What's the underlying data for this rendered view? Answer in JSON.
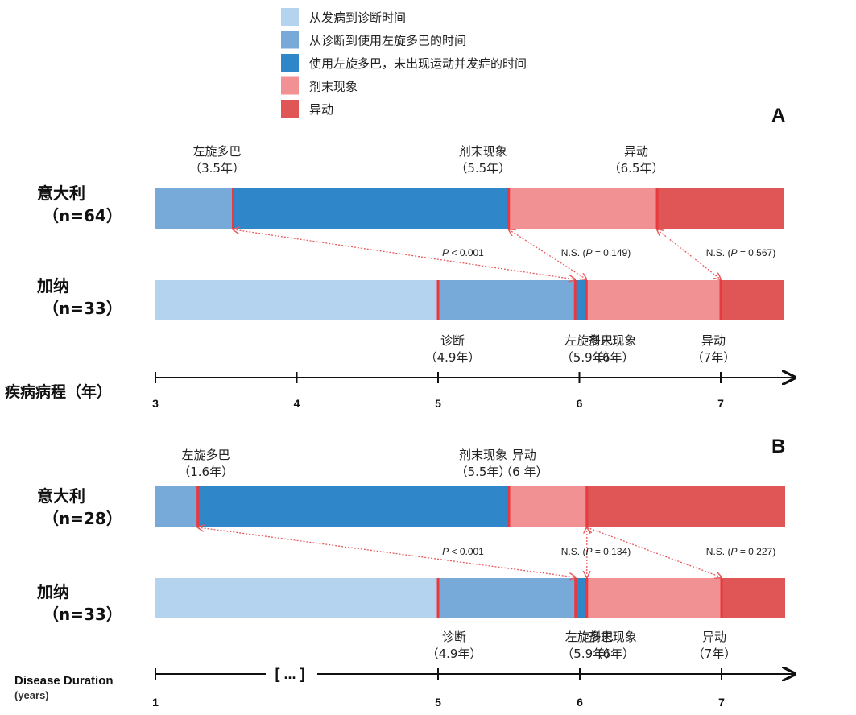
{
  "colors": {
    "onset_to_diagnosis": "#b3d3ef",
    "diagnosis_to_levodopa": "#78aad9",
    "levodopa_no_complications": "#2f86c9",
    "wearing_off": "#f29193",
    "dyskinesia": "#e05555",
    "event_line": "#e8393f",
    "arrow": "#e8595c",
    "axis": "#111111"
  },
  "legend": [
    {
      "label": "从发病到诊断时间",
      "color": "#b3d3ef"
    },
    {
      "label": "从诊断到使用左旋多巴的时间",
      "color": "#78aad9"
    },
    {
      "label": "使用左旋多巴，未出现运动并发症的时间",
      "color": "#2f86c9"
    },
    {
      "label": "剂末现象",
      "color": "#f29193"
    },
    {
      "label": "异动",
      "color": "#e05555"
    }
  ],
  "chart_data": [
    {
      "type": "bar",
      "panel": "A",
      "orientation": "horizontal-timeline",
      "xlabel": "疾病病程（年）",
      "xlim": [
        3,
        7.45
      ],
      "xticks": [
        3,
        4,
        5,
        6,
        7
      ],
      "axis_break": "",
      "groups": [
        {
          "name": "意大利",
          "n": "（n=64）",
          "segments": [
            {
              "series": "从诊断到使用左旋多巴的时间",
              "start": 3,
              "end": 3.55
            },
            {
              "series": "使用左旋多巴，未出现运动并发症的时间",
              "start": 3.55,
              "end": 5.5
            },
            {
              "series": "剂末现象",
              "start": 5.5,
              "end": 6.55
            },
            {
              "series": "异动",
              "start": 6.55,
              "end": 7.45
            }
          ],
          "events": [
            {
              "name": "左旋多巴",
              "value_label": "（3.5年）",
              "x": 3.55
            },
            {
              "name": "剂末现象",
              "value_label": "（5.5年）",
              "x": 5.5
            },
            {
              "name": "异动",
              "value_label": "（6.5年）",
              "x": 6.55
            }
          ]
        },
        {
          "name": "加纳",
          "n": "（n=33）",
          "segments": [
            {
              "series": "从发病到诊断时间",
              "start": 3,
              "end": 5.0
            },
            {
              "series": "从诊断到使用左旋多巴的时间",
              "start": 5.0,
              "end": 5.97
            },
            {
              "series": "使用左旋多巴，未出现运动并发症的时间",
              "start": 5.97,
              "end": 6.05
            },
            {
              "series": "剂末现象",
              "start": 6.05,
              "end": 7.0
            },
            {
              "series": "异动",
              "start": 7.0,
              "end": 7.45
            }
          ],
          "events": [
            {
              "name": "诊断",
              "value_label": "（4.9年）",
              "x": 5.0
            },
            {
              "name": "左旋多巴",
              "value_label": "（5.9年）",
              "x": 5.97
            },
            {
              "name": "剂末现象",
              "value_label": "（6年）",
              "x": 6.05
            },
            {
              "name": "异动",
              "value_label": "（7年）",
              "x": 7.0
            }
          ]
        }
      ],
      "comparisons": [
        {
          "label_prefix": "",
          "p_text": "P",
          "op_value": " < 0.001",
          "suffix": "",
          "from_x": 3.55,
          "to_x": 5.97
        },
        {
          "label_prefix": "N.S. (",
          "p_text": "P",
          "op_value": " = 0.149",
          "suffix": ")",
          "from_x": 5.5,
          "to_x": 6.05
        },
        {
          "label_prefix": "N.S. (",
          "p_text": "P",
          "op_value": " = 0.567",
          "suffix": ")",
          "from_x": 6.55,
          "to_x": 7.0
        }
      ]
    },
    {
      "type": "bar",
      "panel": "B",
      "orientation": "horizontal-timeline",
      "xlabel": "Disease Duration",
      "xlabel_unit": "(years)",
      "xlim": [
        1,
        7.45
      ],
      "xticks": [
        1,
        5,
        6,
        7
      ],
      "axis_break": "[ ... ]",
      "groups": [
        {
          "name": "意大利",
          "n": "（n=28）",
          "segments": [
            {
              "series": "从诊断到使用左旋多巴的时间",
              "start": 1,
              "end": 1.6
            },
            {
              "series": "使用左旋多巴，未出现运动并发症的时间",
              "start": 1.6,
              "end": 5.5
            },
            {
              "series": "剂末现象",
              "start": 5.5,
              "end": 6.05
            },
            {
              "series": "异动",
              "start": 6.05,
              "end": 7.45
            }
          ],
          "events": [
            {
              "name": "左旋多巴",
              "value_label": "（1.6年）",
              "x": 1.6
            },
            {
              "name": "剂末现象",
              "value_label": "（5.5年）",
              "x": 5.5
            },
            {
              "name": "异动",
              "value_label": "（6 年）",
              "x": 6.05
            }
          ]
        },
        {
          "name": "加纳",
          "n": "（n=33）",
          "segments": [
            {
              "series": "从发病到诊断时间",
              "start": 1,
              "end": 5.0
            },
            {
              "series": "从诊断到使用左旋多巴的时间",
              "start": 5.0,
              "end": 5.97
            },
            {
              "series": "使用左旋多巴，未出现运动并发症的时间",
              "start": 5.97,
              "end": 6.05
            },
            {
              "series": "剂末现象",
              "start": 6.05,
              "end": 7.0
            },
            {
              "series": "异动",
              "start": 7.0,
              "end": 7.45
            }
          ],
          "events": [
            {
              "name": "诊断",
              "value_label": "（4.9年）",
              "x": 5.0
            },
            {
              "name": "左旋多巴",
              "value_label": "（5.9年）",
              "x": 5.97
            },
            {
              "name": "剂末现象",
              "value_label": "（6年）",
              "x": 6.05
            },
            {
              "name": "异动",
              "value_label": "（7年）",
              "x": 7.0
            }
          ]
        }
      ],
      "comparisons": [
        {
          "label_prefix": "",
          "p_text": "P",
          "op_value": " < 0.001",
          "suffix": "",
          "from_x": 1.6,
          "to_x": 5.97
        },
        {
          "label_prefix": "N.S. (",
          "p_text": "P",
          "op_value": " = 0.134",
          "suffix": ")",
          "from_x": 6.05,
          "to_x": 6.05
        },
        {
          "label_prefix": "N.S. (",
          "p_text": "P",
          "op_value": " = 0.227",
          "suffix": ")",
          "from_x": 6.05,
          "to_x": 7.0
        }
      ]
    }
  ]
}
